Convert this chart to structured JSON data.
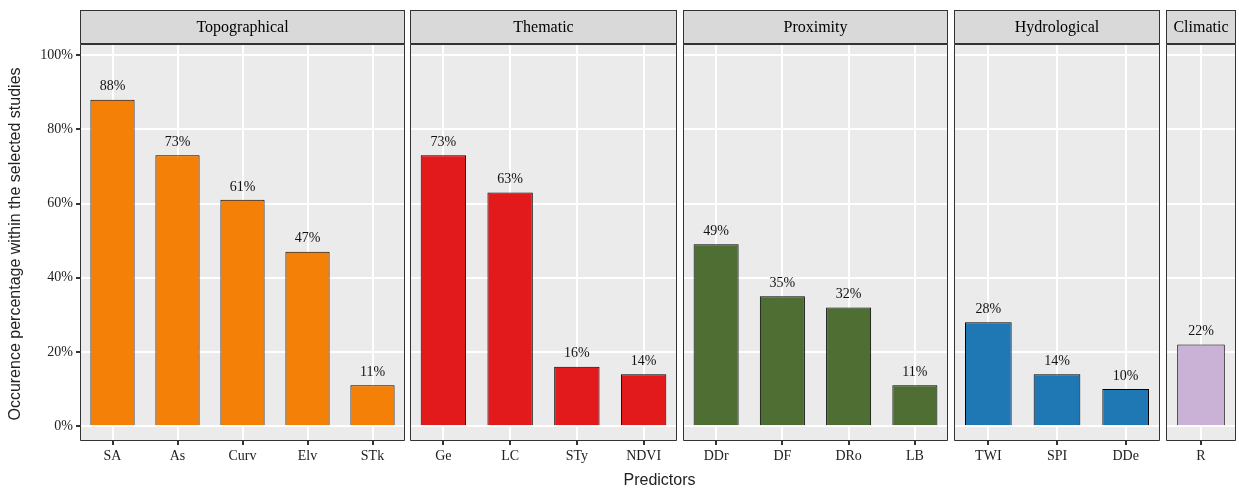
{
  "chart_data": [
    {
      "type": "bar",
      "title": "Topographical",
      "ylabel": "Occurence percentage within the selected studies",
      "categories": [
        "SA",
        "As",
        "Curv",
        "Elv",
        "STk"
      ],
      "values": [
        88,
        73,
        61,
        47,
        11
      ],
      "value_labels": [
        "88%",
        "73%",
        "61%",
        "47%",
        "11%"
      ],
      "color": "#f58008",
      "ylim": [
        -4,
        103
      ],
      "yticks": [
        {
          "value": 0,
          "label": "0%"
        },
        {
          "value": 20,
          "label": "20%"
        },
        {
          "value": 40,
          "label": "40%"
        },
        {
          "value": 60,
          "label": "60%"
        },
        {
          "value": 80,
          "label": "80%"
        },
        {
          "value": 100,
          "label": "100%"
        }
      ],
      "grid": true
    },
    {
      "type": "bar",
      "title": "Thematic",
      "categories": [
        "Ge",
        "LC",
        "STy",
        "NDVI"
      ],
      "values": [
        73,
        63,
        16,
        14
      ],
      "value_labels": [
        "73%",
        "63%",
        "16%",
        "14%"
      ],
      "color": "#e31a1c",
      "ylim": [
        -4,
        103
      ],
      "yticks": [
        {
          "value": 0,
          "label": null
        },
        {
          "value": 20,
          "label": null
        },
        {
          "value": 40,
          "label": null
        },
        {
          "value": 60,
          "label": null
        },
        {
          "value": 80,
          "label": null
        },
        {
          "value": 100,
          "label": null
        }
      ],
      "grid": true,
      "tick_labels": "x"
    },
    {
      "type": "bar",
      "title": "Proximity",
      "xlabel": "Predictors",
      "categories": [
        "DDr",
        "DF",
        "DRo",
        "LB"
      ],
      "values": [
        49,
        35,
        32,
        11
      ],
      "value_labels": [
        "49%",
        "35%",
        "32%",
        "11%"
      ],
      "color": "#4e6e33",
      "ylim": [
        -4,
        103
      ],
      "yticks": [
        {
          "value": 0,
          "label": null
        },
        {
          "value": 20,
          "label": null
        },
        {
          "value": 40,
          "label": null
        },
        {
          "value": 60,
          "label": null
        },
        {
          "value": 80,
          "label": null
        },
        {
          "value": 100,
          "label": null
        }
      ],
      "grid": true,
      "tick_labels": "x"
    },
    {
      "type": "bar",
      "title": "Hydrological",
      "categories": [
        "TWI",
        "SPI",
        "DDe"
      ],
      "values": [
        28,
        14,
        10
      ],
      "value_labels": [
        "28%",
        "14%",
        "10%"
      ],
      "color": "#1f78b4",
      "ylim": [
        -4,
        103
      ],
      "yticks": [
        {
          "value": 0,
          "label": null
        },
        {
          "value": 20,
          "label": null
        },
        {
          "value": 40,
          "label": null
        },
        {
          "value": 60,
          "label": null
        },
        {
          "value": 80,
          "label": null
        },
        {
          "value": 100,
          "label": null
        }
      ],
      "grid": true,
      "tick_labels": "x"
    },
    {
      "type": "bar",
      "title": "Climatic",
      "categories": [
        "R"
      ],
      "values": [
        22
      ],
      "value_labels": [
        "22%"
      ],
      "color": "#cab2d6",
      "ylim": [
        -4,
        103
      ],
      "yticks": [
        {
          "value": 0,
          "label": null
        },
        {
          "value": 20,
          "label": null
        },
        {
          "value": 40,
          "label": null
        },
        {
          "value": 60,
          "label": null
        },
        {
          "value": 80,
          "label": null
        },
        {
          "value": 100,
          "label": null
        }
      ],
      "grid": true,
      "tick_labels": "x"
    }
  ]
}
